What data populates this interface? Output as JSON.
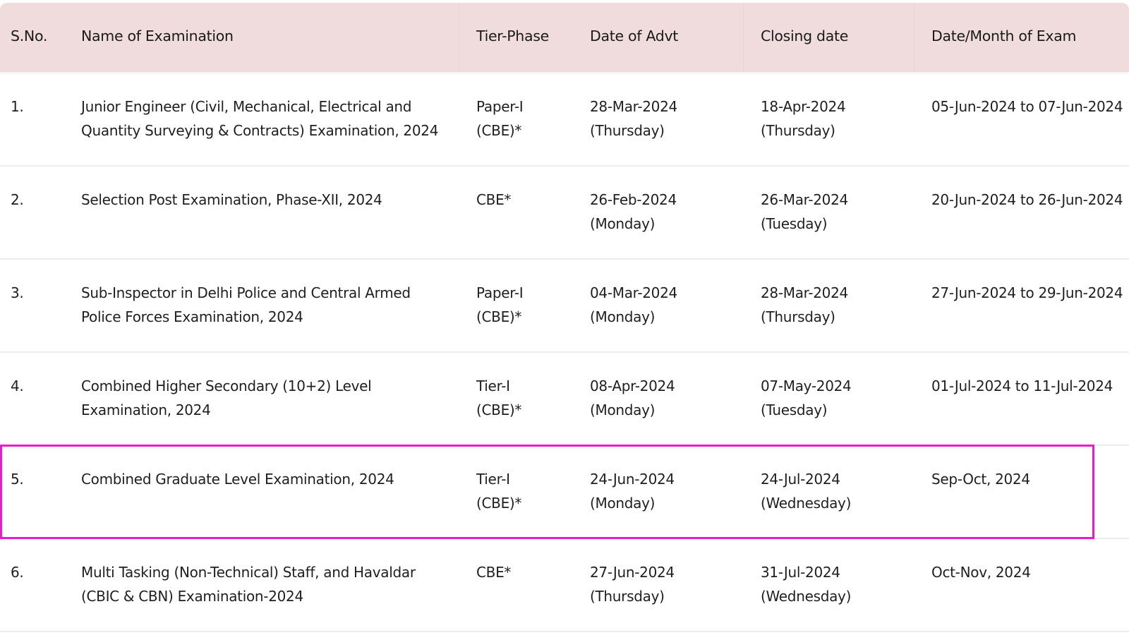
{
  "header": {
    "sno": "S.No.",
    "name": "Name of Examination",
    "tier": "Tier-Phase",
    "advt": "Date of Advt",
    "closing": "Closing date",
    "exam": "Date/Month of Exam"
  },
  "rows": [
    {
      "sno": "1.",
      "name": [
        "Junior Engineer (Civil, Mechanical, Electrical and",
        "Quantity Surveying & Contracts) Examination, 2024"
      ],
      "tier": [
        "Paper-I",
        "(CBE)*"
      ],
      "advt": [
        "28-Mar-2024",
        "(Thursday)"
      ],
      "closing": [
        "18-Apr-2024",
        "(Thursday)"
      ],
      "exam": "05-Jun-2024 to 07-Jun-2024"
    },
    {
      "sno": "2.",
      "name": [
        "Selection Post Examination, Phase-XII, 2024",
        ""
      ],
      "tier": [
        "CBE*",
        ""
      ],
      "advt": [
        "26-Feb-2024",
        "(Monday)"
      ],
      "closing": [
        "26-Mar-2024",
        "(Tuesday)"
      ],
      "exam": "20-Jun-2024 to 26-Jun-2024"
    },
    {
      "sno": "3.",
      "name": [
        "Sub-Inspector in Delhi Police and Central Armed",
        "Police Forces Examination, 2024"
      ],
      "tier": [
        "Paper-I",
        "(CBE)*"
      ],
      "advt": [
        "04-Mar-2024",
        "(Monday)"
      ],
      "closing": [
        "28-Mar-2024",
        "(Thursday)"
      ],
      "exam": "27-Jun-2024 to 29-Jun-2024"
    },
    {
      "sno": "4.",
      "name": [
        "Combined Higher Secondary (10+2) Level",
        "Examination, 2024"
      ],
      "tier": [
        "Tier-I",
        "(CBE)*"
      ],
      "advt": [
        "08-Apr-2024",
        "(Monday)"
      ],
      "closing": [
        "07-May-2024",
        "(Tuesday)"
      ],
      "exam": "01-Jul-2024 to 11-Jul-2024"
    },
    {
      "sno": "5.",
      "name": [
        "Combined Graduate Level Examination, 2024",
        ""
      ],
      "tier": [
        "Tier-I",
        "(CBE)*"
      ],
      "advt": [
        "24-Jun-2024",
        "(Monday)"
      ],
      "closing": [
        "24-Jul-2024",
        "(Wednesday)"
      ],
      "exam": "Sep-Oct, 2024"
    },
    {
      "sno": "6.",
      "name": [
        "Multi Tasking (Non-Technical) Staff, and Havaldar",
        "(CBIC & CBN) Examination-2024"
      ],
      "tier": [
        "CBE*",
        ""
      ],
      "advt": [
        "27-Jun-2024",
        "(Thursday)"
      ],
      "closing": [
        "31-Jul-2024",
        "(Wednesday)"
      ],
      "exam": "Oct-Nov, 2024"
    }
  ],
  "colors": {
    "header_bg": "#f0dcdd",
    "highlight": "#e81ccf",
    "row_border": "#ececec"
  }
}
